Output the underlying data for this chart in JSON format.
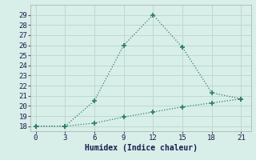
{
  "line1_x": [
    0,
    3,
    6,
    9,
    12,
    15,
    18,
    21
  ],
  "line1_y": [
    18,
    18,
    20.5,
    26,
    29,
    25.8,
    21.3,
    20.7
  ],
  "line2_x": [
    0,
    3,
    6,
    9,
    12,
    15,
    18,
    21
  ],
  "line2_y": [
    18,
    18,
    18.3,
    18.9,
    19.4,
    19.9,
    20.3,
    20.7
  ],
  "line_color": "#2e7b6e",
  "bg_color": "#d8eee8",
  "grid_color": "#c0d8d0",
  "xlabel": "Humidex (Indice chaleur)",
  "xlim": [
    -0.5,
    22
  ],
  "ylim": [
    17.5,
    30
  ],
  "xticks": [
    0,
    3,
    6,
    9,
    12,
    15,
    18,
    21
  ],
  "yticks": [
    18,
    19,
    20,
    21,
    22,
    23,
    24,
    25,
    26,
    27,
    28,
    29
  ],
  "xlabel_fontsize": 7,
  "tick_fontsize": 6.5
}
